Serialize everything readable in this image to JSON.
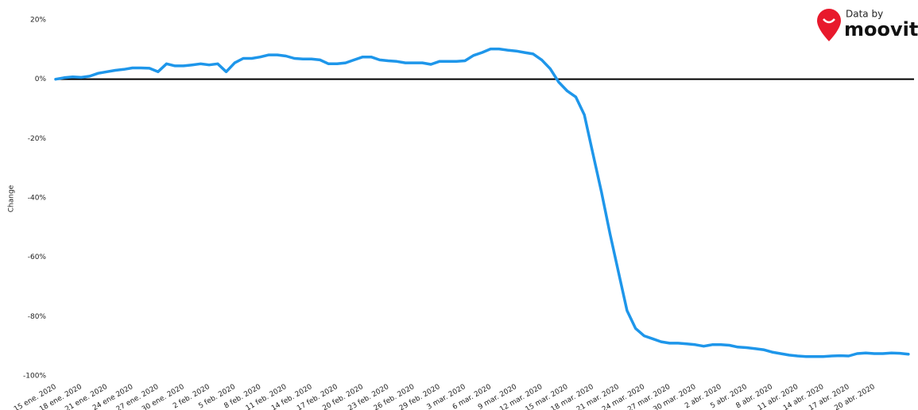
{
  "chart_data": {
    "type": "line",
    "y_label": "Change",
    "source": {
      "prefix": "Data by",
      "brand": "moovit"
    },
    "categories": [
      "15 ene. 2020",
      null,
      null,
      "18 ene. 2020",
      null,
      null,
      "21 ene. 2020",
      null,
      null,
      "24 ene 2020",
      null,
      null,
      "27 ene. 2020",
      null,
      null,
      "30 ene. 2020",
      null,
      null,
      "2 feb. 2020",
      null,
      null,
      "5 feb. 2020",
      null,
      null,
      "8 feb. 2020",
      null,
      null,
      "11 feb. 2020",
      null,
      null,
      "14 feb. 2020",
      null,
      null,
      "17 feb. 2020",
      null,
      null,
      "20 feb. 2020",
      null,
      null,
      "23 feb. 2020",
      null,
      null,
      "26 feb. 2020",
      null,
      null,
      "29 feb. 2020",
      null,
      null,
      "3 mar. 2020",
      null,
      null,
      "6 mar. 2020",
      null,
      null,
      "9 mar. 2020",
      null,
      null,
      "12 mar. 2020",
      null,
      null,
      "15 mar. 2020",
      null,
      null,
      "18 mar. 2020",
      null,
      null,
      "21 mar. 2020",
      null,
      null,
      "24 mar. 2020",
      null,
      null,
      "27 mar. 2020",
      null,
      null,
      "30 mar. 2020",
      null,
      null,
      "2 abr. 2020",
      null,
      null,
      "5 abr. 2020",
      null,
      null,
      "8 abr. 2020",
      null,
      null,
      "11 abr. 2020",
      null,
      null,
      "14 abr. 2020",
      null,
      null,
      "17 abr. 2020",
      null,
      null,
      "20 abr. 2020",
      null,
      null,
      null,
      null
    ],
    "series": [
      {
        "color": "#1e96ea",
        "values": [
          0,
          0.5,
          0.8,
          0.6,
          1,
          2,
          2.5,
          3,
          3.3,
          3.8,
          3.8,
          3.7,
          2.5,
          5.2,
          4.5,
          4.5,
          4.8,
          5.2,
          4.8,
          5.2,
          2.5,
          5.5,
          7,
          7,
          7.5,
          8.2,
          8.2,
          7.8,
          7,
          6.8,
          6.8,
          6.5,
          5.2,
          5.2,
          5.5,
          6.5,
          7.5,
          7.5,
          6.5,
          6.2,
          6,
          5.5,
          5.5,
          5.5,
          5,
          6,
          6,
          6,
          6.2,
          8,
          9,
          10.2,
          10.2,
          9.8,
          9.5,
          9,
          8.5,
          6.5,
          3.5,
          -1,
          -4,
          -6,
          -12,
          -25,
          -38,
          -52,
          -65,
          -78,
          -84,
          -86.5,
          -87.5,
          -88.5,
          -89,
          -89,
          -89.2,
          -89.5,
          -90,
          -89.5,
          -89.5,
          -89.7,
          -90.3,
          -90.5,
          -90.8,
          -91.2,
          -92,
          -92.5,
          -93,
          -93.3,
          -93.5,
          -93.5,
          -93.5,
          -93.3,
          -93.2,
          -93.3,
          -92.5,
          -92.3,
          -92.5,
          -92.5,
          -92.3,
          -92.4,
          -92.7
        ]
      }
    ],
    "ylim": [
      -100,
      20
    ],
    "yticks": [
      {
        "value": -100,
        "label": "-100%"
      },
      {
        "value": -80,
        "label": "-80%"
      },
      {
        "value": -60,
        "label": "-60%"
      },
      {
        "value": -40,
        "label": "-40%"
      },
      {
        "value": -20,
        "label": "-20%"
      },
      {
        "value": 0,
        "label": "0%"
      },
      {
        "value": 20,
        "label": "20%"
      }
    ],
    "zero_line": true
  }
}
